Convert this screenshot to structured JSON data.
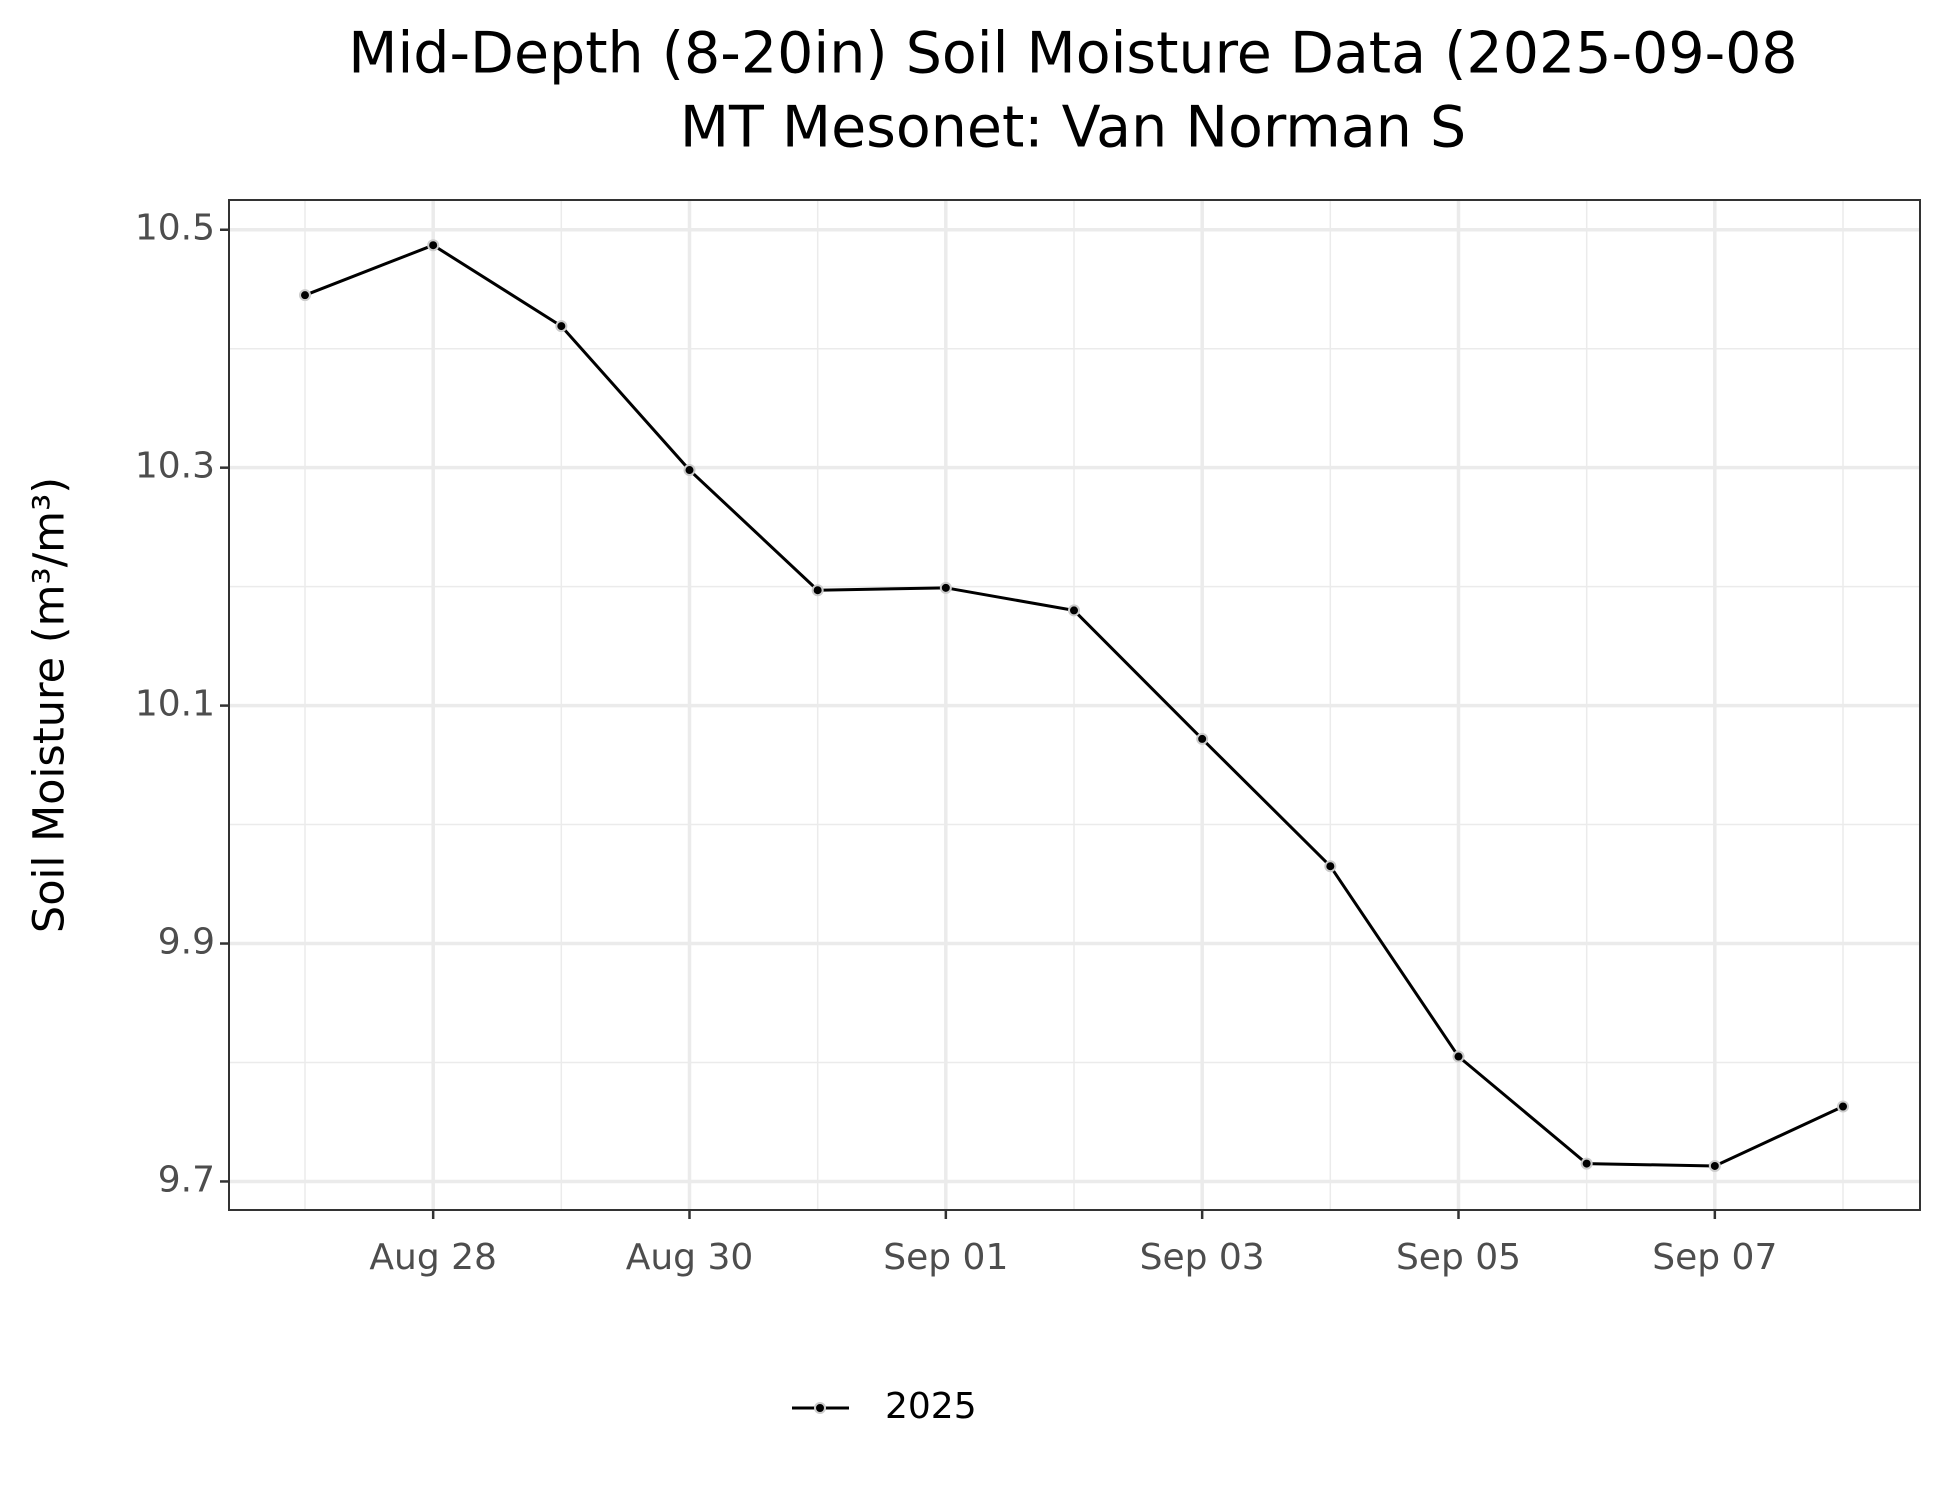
{
  "chart_data": {
    "type": "line",
    "title": [
      "Mid-Depth (8-20in) Soil Moisture Data (2025-09-08",
      "MT Mesonet: Van Norman S"
    ],
    "y_label": "Soil Moisture (m³/m³)",
    "x": [
      "Aug 27",
      "Aug 28",
      "Aug 29",
      "Aug 30",
      "Aug 31",
      "Sep 01",
      "Sep 02",
      "Sep 03",
      "Sep 04",
      "Sep 05",
      "Sep 06",
      "Sep 07",
      "Sep 08"
    ],
    "xticks": [
      "Aug 28",
      "Aug 30",
      "Sep 01",
      "Sep 03",
      "Sep 05",
      "Sep 07"
    ],
    "series": [
      {
        "name": "2025",
        "color": "#000000",
        "values": [
          10.445,
          10.487,
          10.419,
          10.298,
          10.197,
          10.199,
          10.18,
          10.072,
          9.965,
          9.805,
          9.715,
          9.713,
          9.763
        ]
      }
    ],
    "ylim": [
      9.676,
      10.525
    ],
    "yticks": [
      9.7,
      9.9,
      10.1,
      10.3,
      10.5
    ],
    "yminor": [
      9.8,
      10,
      10.2,
      10.4
    ],
    "grid": true,
    "legend": "bottom"
  }
}
